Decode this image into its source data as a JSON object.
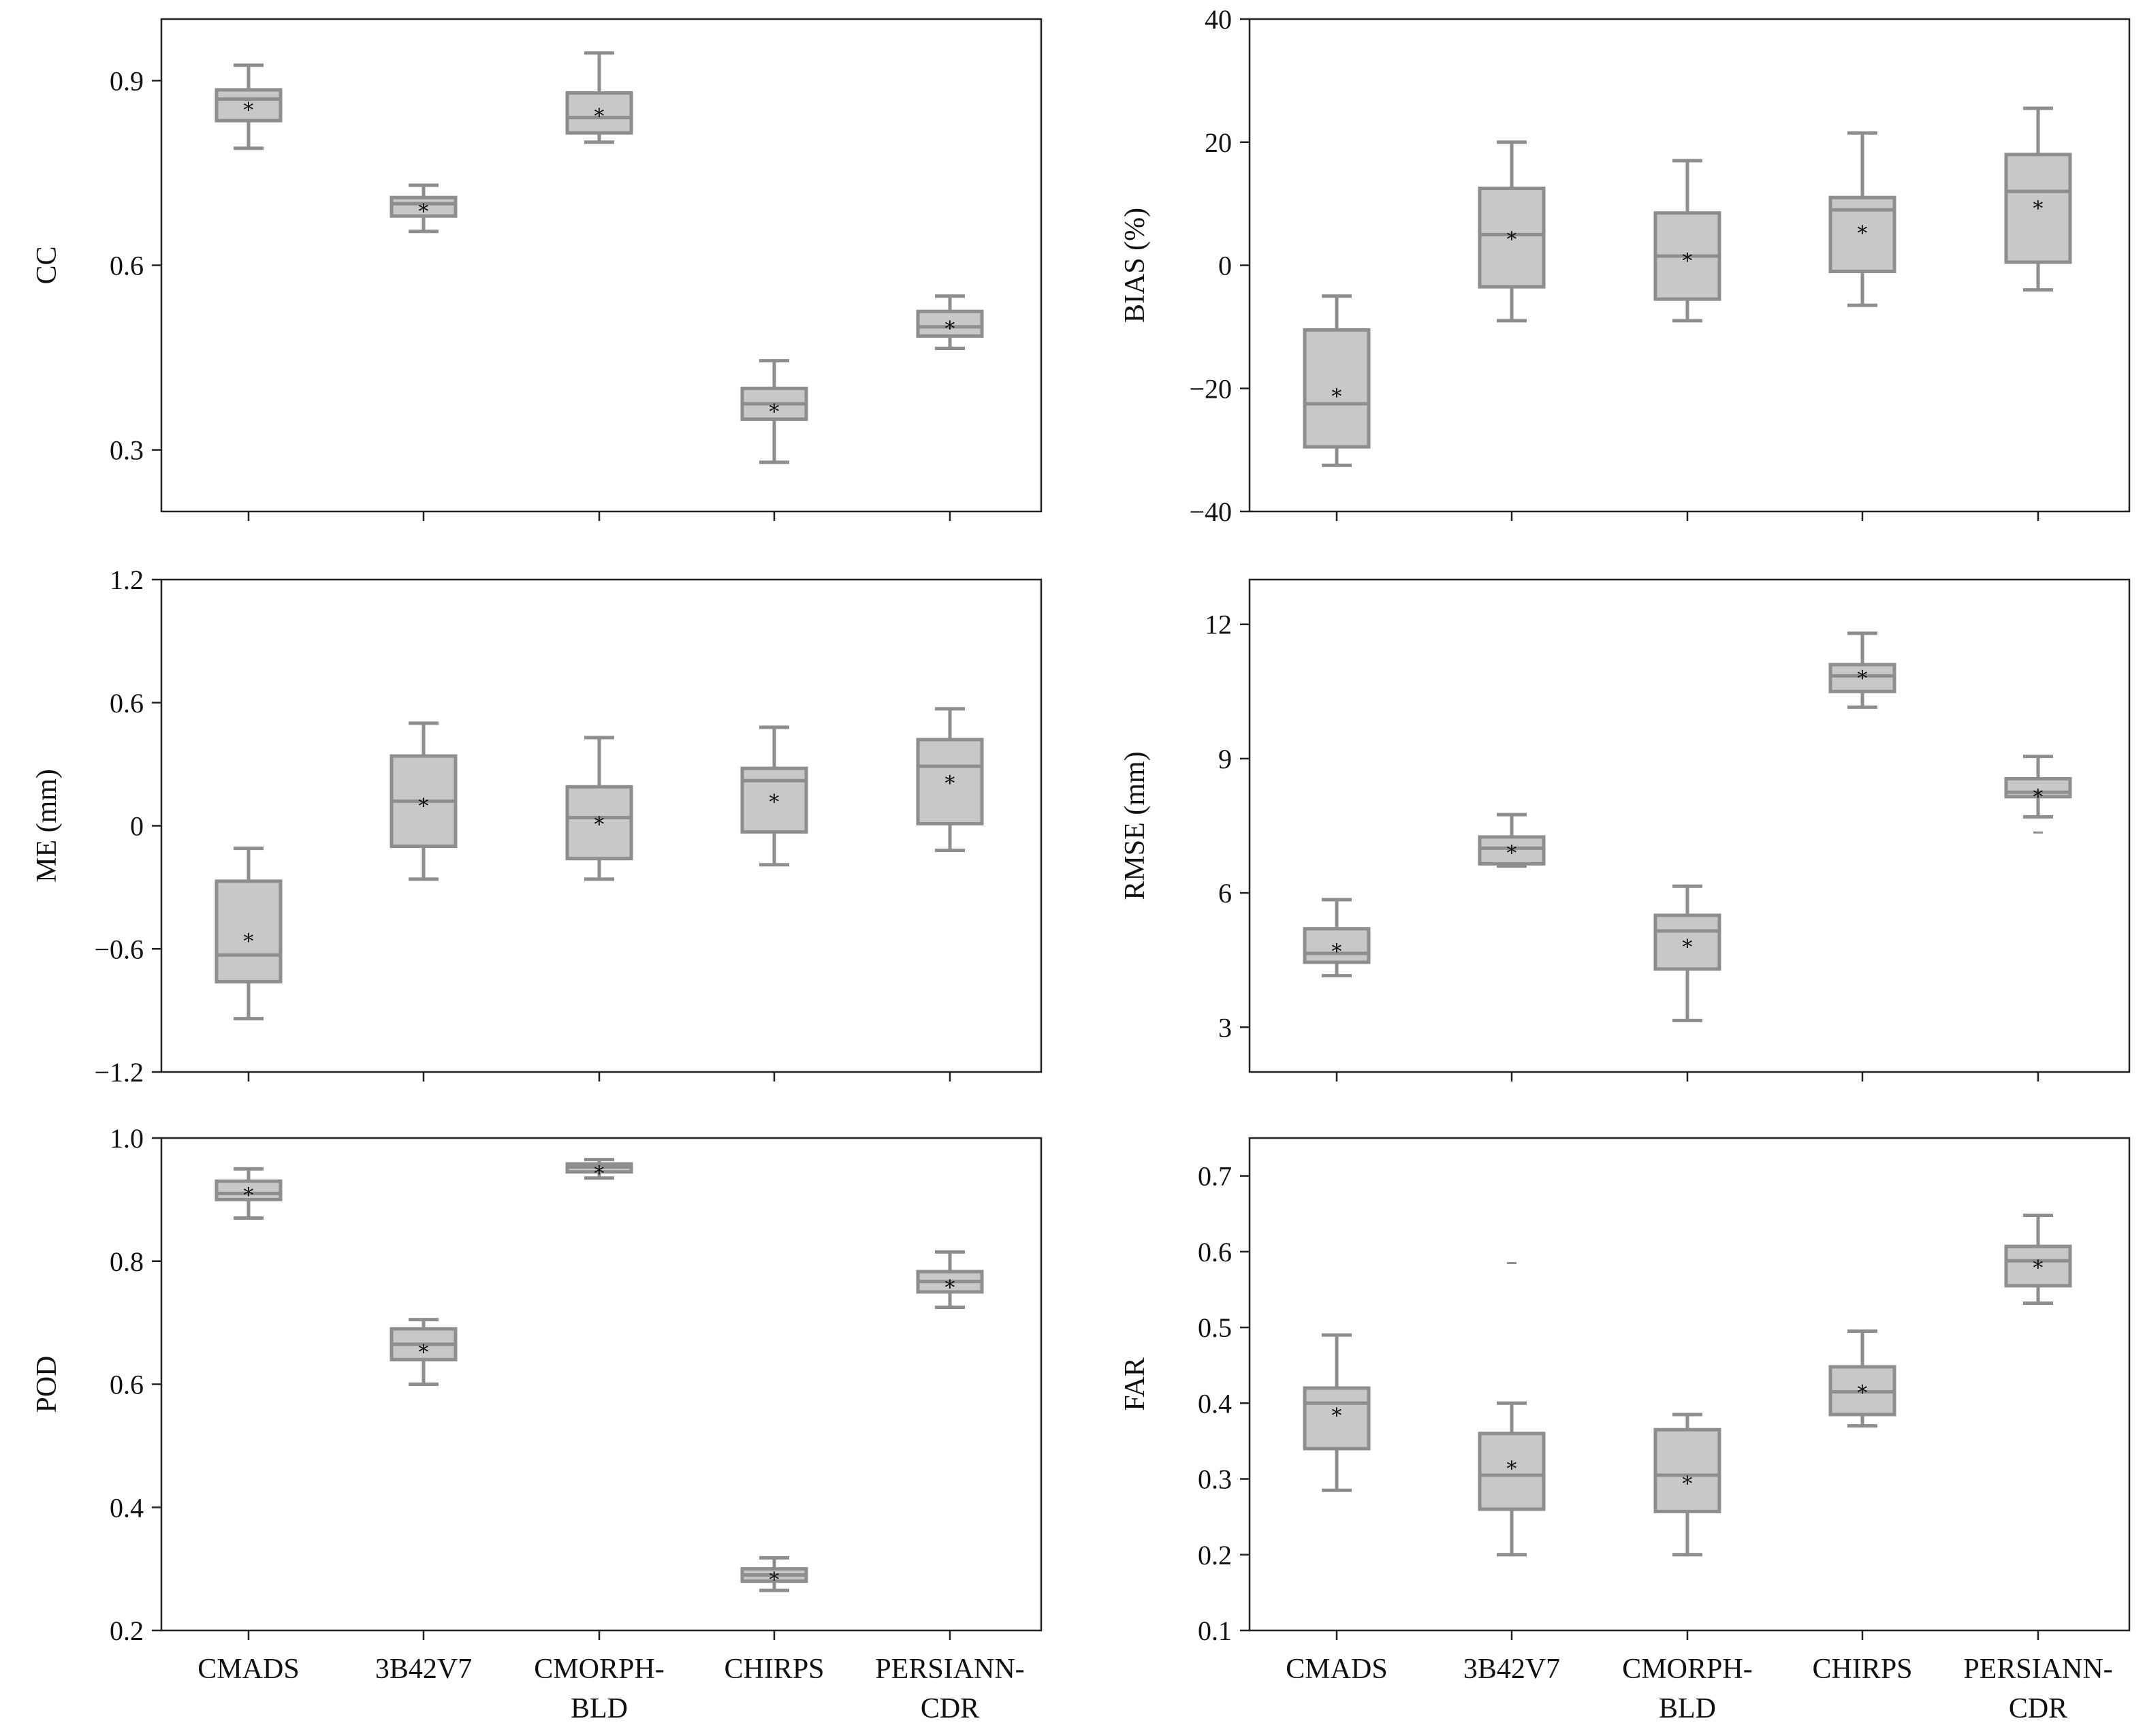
{
  "chart_data": [
    {
      "type": "box",
      "ylabel": "CC",
      "ylim": [
        0.2,
        1.0
      ],
      "yticks": [
        "0.3",
        "0.6",
        "0.9"
      ],
      "ytick_values": [
        0.3,
        0.6,
        0.9
      ],
      "categories": [],
      "boxes": [
        {
          "name": "CMADS",
          "whisker_low": 0.79,
          "q1": 0.835,
          "median": 0.87,
          "q3": 0.885,
          "whisker_high": 0.925,
          "mean": 0.86,
          "outliers": []
        },
        {
          "name": "3B42V7",
          "whisker_low": 0.655,
          "q1": 0.68,
          "median": 0.7,
          "q3": 0.71,
          "whisker_high": 0.73,
          "mean": 0.695,
          "outliers": []
        },
        {
          "name": "CMORPH-BLD",
          "whisker_low": 0.8,
          "q1": 0.815,
          "median": 0.84,
          "q3": 0.88,
          "whisker_high": 0.945,
          "mean": 0.85,
          "outliers": []
        },
        {
          "name": "CHIRPS",
          "whisker_low": 0.28,
          "q1": 0.35,
          "median": 0.375,
          "q3": 0.4,
          "whisker_high": 0.445,
          "mean": 0.37,
          "outliers": []
        },
        {
          "name": "PERSIANN-CDR",
          "whisker_low": 0.465,
          "q1": 0.485,
          "median": 0.5,
          "q3": 0.525,
          "whisker_high": 0.55,
          "mean": 0.505,
          "outliers": []
        }
      ]
    },
    {
      "type": "box",
      "ylabel": "BIAS (%)",
      "ylim": [
        -40,
        40
      ],
      "yticks": [
        "−40",
        "−20",
        "0",
        "20",
        "40"
      ],
      "ytick_values": [
        -40,
        -20,
        0,
        20,
        40
      ],
      "categories": [],
      "boxes": [
        {
          "name": "CMADS",
          "whisker_low": -32.5,
          "q1": -29.5,
          "median": -22.5,
          "q3": -10.5,
          "whisker_high": -5,
          "mean": -20.5,
          "outliers": []
        },
        {
          "name": "3B42V7",
          "whisker_low": -9,
          "q1": -3.5,
          "median": 5,
          "q3": 12.5,
          "whisker_high": 20,
          "mean": 5,
          "outliers": []
        },
        {
          "name": "CMORPH-BLD",
          "whisker_low": -9,
          "q1": -5.5,
          "median": 1.5,
          "q3": 8.5,
          "whisker_high": 17,
          "mean": 1.5,
          "outliers": []
        },
        {
          "name": "CHIRPS",
          "whisker_low": -6.5,
          "q1": -1,
          "median": 9,
          "q3": 11,
          "whisker_high": 21.5,
          "mean": 6,
          "outliers": []
        },
        {
          "name": "PERSIANN-CDR",
          "whisker_low": -4,
          "q1": 0.5,
          "median": 12,
          "q3": 18,
          "whisker_high": 25.5,
          "mean": 10,
          "outliers": []
        }
      ]
    },
    {
      "type": "box",
      "ylabel": "ME (mm)",
      "ylim": [
        -1.2,
        1.2
      ],
      "yticks": [
        "−1.2",
        "−0.6",
        "0",
        "0.6",
        "1.2"
      ],
      "ytick_values": [
        -1.2,
        -0.6,
        0,
        0.6,
        1.2
      ],
      "categories": [],
      "boxes": [
        {
          "name": "CMADS",
          "whisker_low": -0.94,
          "q1": -0.76,
          "median": -0.63,
          "q3": -0.27,
          "whisker_high": -0.11,
          "mean": -0.54,
          "outliers": []
        },
        {
          "name": "3B42V7",
          "whisker_low": -0.26,
          "q1": -0.1,
          "median": 0.12,
          "q3": 0.34,
          "whisker_high": 0.5,
          "mean": 0.12,
          "outliers": []
        },
        {
          "name": "CMORPH-BLD",
          "whisker_low": -0.26,
          "q1": -0.16,
          "median": 0.04,
          "q3": 0.19,
          "whisker_high": 0.43,
          "mean": 0.03,
          "outliers": []
        },
        {
          "name": "CHIRPS",
          "whisker_low": -0.19,
          "q1": -0.03,
          "median": 0.22,
          "q3": 0.28,
          "whisker_high": 0.48,
          "mean": 0.14,
          "outliers": []
        },
        {
          "name": "PERSIANN-CDR",
          "whisker_low": -0.12,
          "q1": 0.01,
          "median": 0.29,
          "q3": 0.42,
          "whisker_high": 0.57,
          "mean": 0.23,
          "outliers": []
        }
      ]
    },
    {
      "type": "box",
      "ylabel": "RMSE (mm)",
      "ylim": [
        2,
        13
      ],
      "yticks": [
        "3",
        "6",
        "9",
        "12"
      ],
      "ytick_values": [
        3,
        6,
        9,
        12
      ],
      "categories": [],
      "boxes": [
        {
          "name": "CMADS",
          "whisker_low": 4.15,
          "q1": 4.45,
          "median": 4.65,
          "q3": 5.2,
          "whisker_high": 5.85,
          "mean": 4.8,
          "outliers": []
        },
        {
          "name": "3B42V7",
          "whisker_low": 6.6,
          "q1": 6.65,
          "median": 7.0,
          "q3": 7.25,
          "whisker_high": 7.75,
          "mean": 7.0,
          "outliers": []
        },
        {
          "name": "CMORPH-BLD",
          "whisker_low": 3.15,
          "q1": 4.3,
          "median": 5.15,
          "q3": 5.5,
          "whisker_high": 6.15,
          "mean": 4.9,
          "outliers": []
        },
        {
          "name": "CHIRPS",
          "whisker_low": 10.15,
          "q1": 10.5,
          "median": 10.85,
          "q3": 11.1,
          "whisker_high": 11.8,
          "mean": 10.9,
          "outliers": []
        },
        {
          "name": "PERSIANN-CDR",
          "whisker_low": 7.7,
          "q1": 8.15,
          "median": 8.25,
          "q3": 8.55,
          "whisker_high": 9.05,
          "mean": 8.25,
          "outliers": [
            7.35
          ]
        }
      ]
    },
    {
      "type": "box",
      "ylabel": "POD",
      "ylim": [
        0.2,
        1.0
      ],
      "yticks": [
        "0.2",
        "0.4",
        "0.6",
        "0.8",
        "1.0"
      ],
      "ytick_values": [
        0.2,
        0.4,
        0.6,
        0.8,
        1.0
      ],
      "categories": [
        "CMADS",
        "3B42V7",
        "CMORPH-BLD",
        "CHIRPS",
        "PERSIANN-CDR"
      ],
      "boxes": [
        {
          "name": "CMADS",
          "whisker_low": 0.87,
          "q1": 0.9,
          "median": 0.91,
          "q3": 0.93,
          "whisker_high": 0.95,
          "mean": 0.915,
          "outliers": []
        },
        {
          "name": "3B42V7",
          "whisker_low": 0.6,
          "q1": 0.64,
          "median": 0.665,
          "q3": 0.69,
          "whisker_high": 0.705,
          "mean": 0.66,
          "outliers": []
        },
        {
          "name": "CMORPH-BLD",
          "whisker_low": 0.935,
          "q1": 0.945,
          "median": 0.953,
          "q3": 0.958,
          "whisker_high": 0.965,
          "mean": 0.95,
          "outliers": []
        },
        {
          "name": "CHIRPS",
          "whisker_low": 0.265,
          "q1": 0.28,
          "median": 0.29,
          "q3": 0.3,
          "whisker_high": 0.318,
          "mean": 0.29,
          "outliers": []
        },
        {
          "name": "PERSIANN-CDR",
          "whisker_low": 0.725,
          "q1": 0.75,
          "median": 0.767,
          "q3": 0.783,
          "whisker_high": 0.815,
          "mean": 0.765,
          "outliers": []
        }
      ]
    },
    {
      "type": "box",
      "ylabel": "FAR",
      "ylim": [
        0.1,
        0.75
      ],
      "yticks": [
        "0.1",
        "0.2",
        "0.3",
        "0.4",
        "0.5",
        "0.6",
        "0.7"
      ],
      "ytick_values": [
        0.1,
        0.2,
        0.3,
        0.4,
        0.5,
        0.6,
        0.7
      ],
      "categories": [
        "CMADS",
        "3B42V7",
        "CMORPH-BLD",
        "CHIRPS",
        "PERSIANN-CDR"
      ],
      "boxes": [
        {
          "name": "CMADS",
          "whisker_low": 0.285,
          "q1": 0.34,
          "median": 0.4,
          "q3": 0.42,
          "whisker_high": 0.49,
          "mean": 0.39,
          "outliers": []
        },
        {
          "name": "3B42V7",
          "whisker_low": 0.2,
          "q1": 0.26,
          "median": 0.305,
          "q3": 0.36,
          "whisker_high": 0.4,
          "mean": 0.32,
          "outliers": [
            0.585
          ]
        },
        {
          "name": "CMORPH-BLD",
          "whisker_low": 0.2,
          "q1": 0.257,
          "median": 0.305,
          "q3": 0.365,
          "whisker_high": 0.385,
          "mean": 0.3,
          "outliers": []
        },
        {
          "name": "CHIRPS",
          "whisker_low": 0.37,
          "q1": 0.385,
          "median": 0.415,
          "q3": 0.448,
          "whisker_high": 0.495,
          "mean": 0.42,
          "outliers": []
        },
        {
          "name": "PERSIANN-CDR",
          "whisker_low": 0.532,
          "q1": 0.555,
          "median": 0.588,
          "q3": 0.607,
          "whisker_high": 0.648,
          "mean": 0.585,
          "outliers": []
        }
      ]
    }
  ]
}
